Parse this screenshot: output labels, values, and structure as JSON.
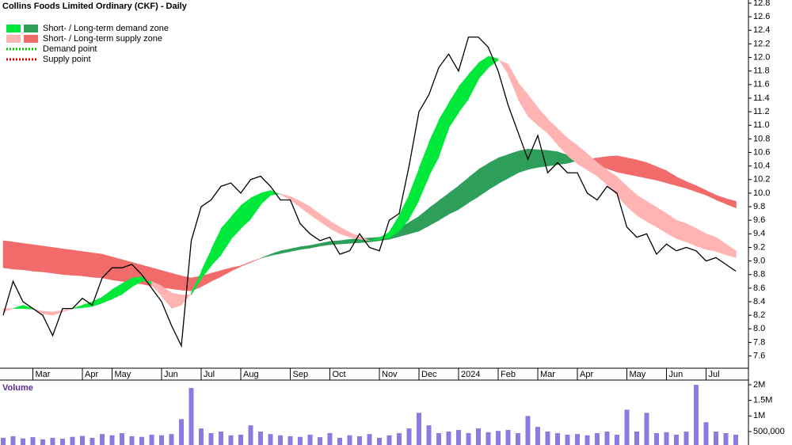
{
  "chart_data": {
    "type": "stock",
    "title": "Collins Foods Limited Ordinary (CKF) - Daily",
    "categories": [
      null,
      null,
      null,
      "Mar",
      null,
      null,
      null,
      null,
      "Apr",
      null,
      null,
      "May",
      null,
      null,
      null,
      null,
      "Jun",
      null,
      null,
      null,
      "Jul",
      null,
      null,
      null,
      "Aug",
      null,
      null,
      null,
      null,
      "Sep",
      null,
      null,
      null,
      "Oct",
      null,
      null,
      null,
      null,
      "Nov",
      null,
      null,
      null,
      "Dec",
      null,
      null,
      null,
      "2024",
      null,
      null,
      null,
      "Feb",
      null,
      null,
      null,
      "Mar",
      null,
      null,
      null,
      "Apr",
      null,
      null,
      null,
      null,
      "May",
      null,
      null,
      null,
      "Jun",
      null,
      null,
      null,
      "Jul",
      null,
      null,
      null
    ],
    "series": [
      {
        "color": "#000000",
        "values": [
          8.2,
          8.7,
          8.4,
          8.3,
          8.2,
          7.9,
          8.3,
          8.3,
          8.45,
          8.35,
          8.75,
          8.9,
          8.9,
          8.95,
          8.8,
          8.6,
          8.4,
          8.05,
          7.75,
          9.3,
          9.8,
          9.9,
          10.1,
          10.15,
          10.0,
          10.2,
          10.25,
          10.1,
          9.9,
          9.9,
          9.55,
          9.4,
          9.3,
          9.35,
          9.1,
          9.15,
          9.4,
          9.2,
          9.15,
          9.6,
          9.7,
          10.4,
          11.2,
          11.45,
          11.85,
          12.05,
          11.8,
          12.3,
          12.3,
          12.15,
          11.8,
          11.3,
          10.9,
          10.5,
          10.85,
          10.3,
          10.45,
          10.3,
          10.3,
          10.0,
          9.9,
          10.1,
          10.0,
          9.5,
          9.35,
          9.4,
          9.1,
          9.25,
          9.15,
          9.2,
          9.15,
          9.0,
          9.05,
          8.95,
          8.85
        ]
      }
    ],
    "bands": [
      {
        "fast": [
          8.25,
          8.3,
          8.35,
          8.3,
          8.22,
          8.2,
          8.25,
          8.3,
          8.35,
          8.4,
          8.47,
          8.58,
          8.67,
          8.75,
          8.77,
          8.64,
          8.48,
          8.3,
          8.35,
          8.53,
          8.85,
          9.17,
          9.48,
          9.65,
          9.82,
          9.93,
          10.0,
          10.04,
          9.98,
          9.9,
          9.79,
          9.68,
          9.58,
          9.48,
          9.4,
          9.35,
          9.32,
          9.3,
          9.34,
          9.43,
          9.68,
          9.98,
          10.37,
          10.75,
          11.08,
          11.33,
          11.57,
          11.75,
          11.92,
          12.02,
          11.98,
          11.75,
          11.38,
          11.13,
          11.0,
          10.88,
          10.71,
          10.55,
          10.43,
          10.34,
          10.25,
          10.12,
          9.96,
          9.8,
          9.67,
          9.58,
          9.5,
          9.41,
          9.33,
          9.28,
          9.22,
          9.17,
          9.14,
          9.09,
          9.05
        ],
        "slow": [
          8.3,
          8.3,
          8.3,
          8.29,
          8.26,
          8.25,
          8.27,
          8.3,
          8.31,
          8.33,
          8.38,
          8.44,
          8.51,
          8.62,
          8.7,
          8.7,
          8.63,
          8.53,
          8.5,
          8.5,
          8.74,
          8.93,
          9.09,
          9.32,
          9.48,
          9.62,
          9.83,
          9.97,
          9.99,
          9.95,
          9.88,
          9.8,
          9.69,
          9.59,
          9.5,
          9.42,
          9.36,
          9.3,
          9.32,
          9.34,
          9.44,
          9.62,
          9.9,
          10.25,
          10.54,
          10.96,
          11.19,
          11.39,
          11.68,
          11.85,
          11.96,
          11.9,
          11.63,
          11.45,
          11.26,
          11.09,
          10.95,
          10.81,
          10.7,
          10.58,
          10.45,
          10.34,
          10.24,
          10.1,
          9.97,
          9.88,
          9.79,
          9.7,
          9.6,
          9.55,
          9.48,
          9.4,
          9.35,
          9.25,
          9.15
        ]
      },
      {
        "fast": [
          8.9,
          8.88,
          8.87,
          8.85,
          8.84,
          8.82,
          8.8,
          8.79,
          8.78,
          8.76,
          8.75,
          8.72,
          8.7,
          8.68,
          8.66,
          8.63,
          8.61,
          8.59,
          8.57,
          8.56,
          8.62,
          8.7,
          8.77,
          8.85,
          8.92,
          8.98,
          9.04,
          9.1,
          9.15,
          9.18,
          9.21,
          9.23,
          9.26,
          9.29,
          9.3,
          9.32,
          9.33,
          9.34,
          9.35,
          9.4,
          9.49,
          9.57,
          9.66,
          9.78,
          9.89,
          10.0,
          10.11,
          10.23,
          10.35,
          10.44,
          10.52,
          10.57,
          10.62,
          10.65,
          10.64,
          10.63,
          10.61,
          10.56,
          10.51,
          10.45,
          10.41,
          10.36,
          10.31,
          10.28,
          10.25,
          10.22,
          10.19,
          10.15,
          10.11,
          10.07,
          10.02,
          9.97,
          9.9,
          9.84,
          9.78
        ],
        "slow": [
          9.3,
          9.28,
          9.26,
          9.24,
          9.22,
          9.2,
          9.18,
          9.16,
          9.14,
          9.12,
          9.1,
          9.06,
          9.02,
          8.98,
          8.94,
          8.9,
          8.86,
          8.82,
          8.78,
          8.75,
          8.78,
          8.82,
          8.86,
          8.9,
          8.93,
          8.99,
          9.04,
          9.08,
          9.11,
          9.14,
          9.17,
          9.19,
          9.22,
          9.24,
          9.25,
          9.26,
          9.27,
          9.28,
          9.3,
          9.32,
          9.36,
          9.4,
          9.44,
          9.52,
          9.6,
          9.69,
          9.76,
          9.86,
          9.95,
          10.05,
          10.14,
          10.22,
          10.3,
          10.35,
          10.38,
          10.4,
          10.42,
          10.44,
          10.48,
          10.5,
          10.52,
          10.54,
          10.55,
          10.52,
          10.49,
          10.45,
          10.39,
          10.33,
          10.24,
          10.17,
          10.11,
          10.04,
          9.97,
          9.92,
          9.88
        ]
      }
    ],
    "ylim": [
      7.42,
      12.8
    ],
    "yticks": [
      7.6,
      7.8,
      {
        "value": 8,
        "label": "8.0"
      },
      8.2,
      8.4,
      8.6,
      8.8,
      {
        "value": 9,
        "label": "9.0"
      },
      9.2,
      9.4,
      9.6,
      9.8,
      {
        "value": 10,
        "label": "10.0"
      },
      10.2,
      10.4,
      10.6,
      10.8,
      {
        "value": 11,
        "label": "11.0"
      },
      11.2,
      11.4,
      11.6,
      11.8,
      {
        "value": 12,
        "label": "12.0"
      },
      12.2,
      12.4,
      12.6,
      12.8
    ],
    "legend": [
      {
        "label": "Short- / Long-term demand zone",
        "colors": [
          "#00e83a",
          "#2e9e5b"
        ]
      },
      {
        "label": "Short- / Long-term supply zone",
        "colors": [
          "#ffb3b3",
          "#f26b6b"
        ]
      },
      {
        "label": "Demand point",
        "color": "#00c000"
      },
      {
        "label": "Supply point",
        "color": "#e00000"
      }
    ],
    "volume": {
      "title": "Volume",
      "color": "#8a7be0",
      "values": [
        300000,
        350000,
        280000,
        320000,
        250000,
        300000,
        270000,
        330000,
        360000,
        300000,
        420000,
        380000,
        450000,
        350000,
        330000,
        400000,
        380000,
        420000,
        900000,
        1900000,
        600000,
        450000,
        500000,
        380000,
        400000,
        700000,
        500000,
        420000,
        380000,
        350000,
        330000,
        400000,
        320000,
        450000,
        300000,
        380000,
        350000,
        420000,
        300000,
        380000,
        450000,
        600000,
        1100000,
        700000,
        450000,
        500000,
        550000,
        450000,
        600000,
        480000,
        520000,
        550000,
        450000,
        1000000,
        650000,
        500000,
        450000,
        400000,
        420000,
        380000,
        450000,
        500000,
        400000,
        1200000,
        500000,
        1100000,
        450000,
        480000,
        400000,
        500000,
        2000000,
        800000,
        500000,
        450000,
        400000
      ],
      "ylim": [
        120000,
        2100000
      ],
      "yticks": [
        {
          "value": 500000,
          "label": "500,000"
        },
        {
          "value": 1000000,
          "label": "1M"
        },
        {
          "value": 1500000,
          "label": "1.5M"
        },
        {
          "value": 2000000,
          "label": "2M"
        }
      ]
    }
  }
}
